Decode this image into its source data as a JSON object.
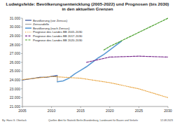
{
  "chart_data": {
    "type": "line",
    "title": "Ludwigsfelde: Bevölkerungsentwicklung (2005-2022) und Prognosen (bis 2030) in den aktuellen Grenzen",
    "annotations": [
      "By: Hans G. Oberlack",
      "Quellen: Amt für Statistik Berlin-Brandenburg, Landesamt für Bauen und Verkehr",
      "12.08.2023"
    ],
    "xlim": [
      2005,
      2030
    ],
    "xticks": [
      2005,
      2010,
      2015,
      2020,
      2025,
      2030
    ],
    "ylim": [
      21000,
      31000
    ],
    "yticks": [
      {
        "value": 21000,
        "label": "21.000"
      },
      {
        "value": 22000,
        "label": "22.000"
      },
      {
        "value": 23000,
        "label": "23.000"
      },
      {
        "value": 24000,
        "label": "24.000"
      },
      {
        "value": 25000,
        "label": "25.000"
      },
      {
        "value": 26000,
        "label": "26.000"
      },
      {
        "value": 27000,
        "label": "27.000"
      },
      {
        "value": 28000,
        "label": "28.000"
      },
      {
        "value": 29000,
        "label": "29.000"
      },
      {
        "value": 30000,
        "label": "30.000"
      },
      {
        "value": 31000,
        "label": "31.000"
      }
    ],
    "grid": false,
    "legend": "upper left",
    "series": [
      {
        "name": "Bevölkerung (vor Zensus)",
        "color": "#1f3f8f",
        "line_style": "solid",
        "x": [
          2005,
          2006,
          2007,
          2008,
          2009,
          2010,
          2011
        ],
        "values": [
          24000,
          24100,
          24200,
          24300,
          24300,
          24400,
          24500
        ]
      },
      {
        "name": "Zensusdelle",
        "color": "#9a9a9a",
        "line_style": "solid",
        "x": [
          2011,
          2011
        ],
        "values": [
          24500,
          23800
        ]
      },
      {
        "name": "Bevölkerung (nach Zensus)",
        "color": "#5b9bd5",
        "line_style": "solid",
        "x": [
          2011,
          2012,
          2013,
          2014,
          2015,
          2016,
          2017,
          2018,
          2019,
          2020,
          2021,
          2022
        ],
        "values": [
          23800,
          23900,
          24200,
          24700,
          25100,
          25500,
          26000,
          26500,
          26900,
          27400,
          27900,
          28400
        ]
      },
      {
        "name": "Prognose des Landes BB 2005-2030",
        "color": "#e8a33d",
        "line_style": "dotted",
        "x": [
          2005,
          2010,
          2015,
          2020,
          2025,
          2030
        ],
        "values": [
          24050,
          24400,
          24200,
          23700,
          23000,
          22000
        ]
      },
      {
        "name": "Prognose des Landes BB 2017-2030",
        "color": "#7b2d8e",
        "line_style": "dashed",
        "x": [
          2016,
          2020,
          2025,
          2030
        ],
        "values": [
          26000,
          26600,
          26700,
          26600
        ]
      },
      {
        "name": "Prognose des Landes BB 2020-2030",
        "color": "#4aa02c",
        "line_style": "dashed",
        "x": [
          2019,
          2020,
          2025,
          2030
        ],
        "values": [
          27400,
          27800,
          29400,
          31000
        ]
      }
    ]
  }
}
